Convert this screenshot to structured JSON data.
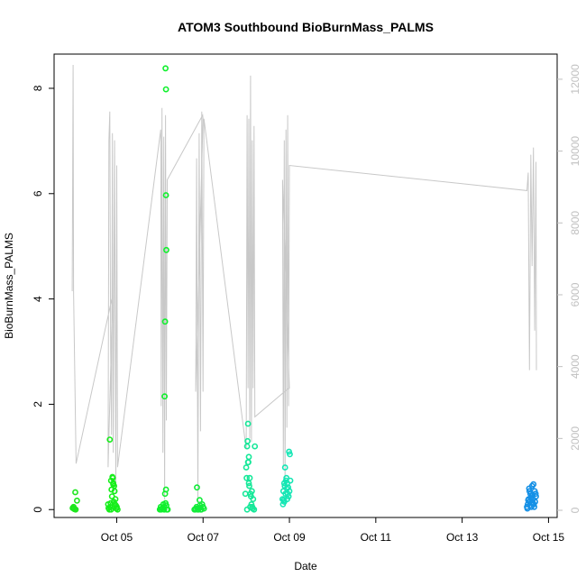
{
  "chart_data": {
    "type": "scatter",
    "title": "ATOM3 Southbound BioBurnMass_PALMS",
    "xlabel": "Date",
    "ylabel": "BioBurnMass_PALMS",
    "xlim": [
      3.55,
      15.2
    ],
    "ylim": [
      -0.15,
      8.65
    ],
    "y_ticks": [
      0,
      2,
      4,
      6,
      8
    ],
    "x_ticks": [
      {
        "value": 5,
        "label": "Oct 05"
      },
      {
        "value": 7,
        "label": "Oct 07"
      },
      {
        "value": 9,
        "label": "Oct 09"
      },
      {
        "value": 11,
        "label": "Oct 11"
      },
      {
        "value": 13,
        "label": "Oct 13"
      },
      {
        "value": 15,
        "label": "Oct 15"
      }
    ],
    "y2lim": [
      -200,
      12700
    ],
    "y2_ticks": [
      0,
      2000,
      4000,
      6000,
      8000,
      10000,
      12000
    ],
    "grid": false,
    "line_color": "#c8c8c8",
    "altitude_series": {
      "x": [
        3.97,
        3.99,
        4.0,
        4.06,
        4.88,
        4.9,
        4.8,
        4.82,
        4.84,
        4.86,
        4.88,
        4.9,
        4.92,
        4.95,
        4.98,
        5.0,
        5.02,
        6.02,
        6.03,
        6.05,
        6.07,
        6.09,
        6.11,
        6.13,
        6.15,
        6.17,
        6.99,
        7.0,
        6.83,
        6.85,
        6.88,
        6.91,
        6.94,
        6.97,
        7.0,
        7.02,
        8.0,
        8.02,
        8.04,
        8.06,
        8.08,
        8.1,
        8.12,
        8.14,
        8.16,
        8.18,
        8.2,
        8.98,
        9.0,
        8.84,
        8.86,
        8.88,
        8.9,
        8.92,
        8.94,
        8.96,
        8.98,
        9.0,
        14.5,
        14.53,
        14.56,
        14.59,
        14.62,
        14.65,
        14.68,
        14.71,
        14.72
      ],
      "y": [
        6100,
        12400,
        6100,
        1300,
        5850,
        5800,
        1200,
        10300,
        11100,
        4500,
        2100,
        10500,
        1600,
        10300,
        500,
        9600,
        1200,
        10600,
        2900,
        11200,
        1600,
        10400,
        300,
        11000,
        2500,
        9200,
        11000,
        10900,
        3300,
        9800,
        200,
        10500,
        2200,
        11100,
        3300,
        10900,
        1700,
        11000,
        3400,
        10900,
        2000,
        12100,
        1900,
        10300,
        3400,
        10700,
        2600,
        3400,
        3400,
        9200,
        1200,
        10300,
        500,
        10600,
        2300,
        11000,
        2900,
        9600,
        8900,
        9400,
        3900,
        9900,
        6800,
        10100,
        5000,
        9700,
        3900
      ]
    },
    "series": [
      {
        "color": "#1de61d",
        "x": [
          3.98,
          4.0,
          4.02,
          4.04,
          4.08,
          4.01,
          4.05
        ],
        "y": [
          0.03,
          0.05,
          0.01,
          0.33,
          0.17,
          0.02,
          0.0
        ]
      },
      {
        "color": "#16ee1a",
        "x": [
          4.8,
          4.83,
          4.85,
          4.87,
          4.9,
          4.92,
          4.95,
          4.97,
          5.0,
          5.02,
          4.86,
          4.88,
          4.91,
          4.94,
          4.96,
          4.99,
          4.84,
          4.89,
          4.93,
          4.98,
          4.81,
          4.87,
          4.92
        ],
        "y": [
          0.1,
          0.0,
          0.05,
          0.55,
          0.62,
          0.5,
          0.35,
          0.2,
          0.05,
          0.0,
          0.12,
          0.38,
          0.6,
          0.45,
          0.1,
          0.02,
          1.33,
          0.25,
          0.15,
          0.08,
          0.03,
          0.0,
          0.48
        ]
      },
      {
        "color": "#0ff02c",
        "x": [
          6.0,
          6.02,
          6.05,
          6.08,
          6.1,
          6.12,
          6.14,
          6.16,
          6.13,
          6.14,
          6.14,
          6.15,
          6.12,
          6.11,
          6.1,
          6.13,
          6.15,
          6.18,
          6.06,
          6.03
        ],
        "y": [
          0.0,
          0.05,
          0.02,
          0.1,
          0.05,
          0.3,
          0.38,
          0.0,
          8.38,
          7.98,
          5.97,
          4.93,
          3.57,
          2.15,
          0.0,
          0.12,
          0.08,
          0.0,
          0.03,
          0.0
        ]
      },
      {
        "color": "#12ec3a",
        "x": [
          6.8,
          6.83,
          6.85,
          6.88,
          6.9,
          6.93,
          6.96,
          7.0,
          7.02,
          6.86,
          6.92,
          6.98,
          6.82,
          6.95,
          6.89
        ],
        "y": [
          0.0,
          0.02,
          0.05,
          0.0,
          0.03,
          0.08,
          0.0,
          0.05,
          0.02,
          0.42,
          0.18,
          0.1,
          0.0,
          0.0,
          0.0
        ]
      },
      {
        "color": "#16e899",
        "x": [
          7.98,
          8.0,
          8.02,
          8.04,
          8.05,
          8.06,
          8.08,
          8.1,
          8.12,
          8.14,
          8.16,
          8.18,
          8.2,
          8.03,
          8.01,
          8.07,
          8.09,
          8.11,
          8.13,
          8.15,
          8.02,
          8.04,
          8.06
        ],
        "y": [
          0.3,
          0.8,
          1.2,
          1.63,
          0.9,
          0.5,
          0.6,
          0.3,
          0.1,
          0.05,
          0.2,
          0.0,
          1.2,
          1.3,
          0.6,
          0.45,
          0.05,
          0.25,
          0.35,
          0.02,
          0.0,
          0.9,
          1.0
        ]
      },
      {
        "color": "#14e6b4",
        "x": [
          8.84,
          8.86,
          8.88,
          8.9,
          8.92,
          8.94,
          8.96,
          8.98,
          9.0,
          9.02,
          8.85,
          8.87,
          8.89,
          8.91,
          8.93,
          8.95,
          8.97,
          8.99,
          9.01,
          8.88,
          8.95
        ],
        "y": [
          0.2,
          0.35,
          0.5,
          0.8,
          0.55,
          0.4,
          0.3,
          0.25,
          0.35,
          0.55,
          0.1,
          0.18,
          0.45,
          0.3,
          0.6,
          0.2,
          0.42,
          1.1,
          1.05,
          0.15,
          0.5
        ]
      },
      {
        "color": "#1590e6",
        "x": [
          14.5,
          14.52,
          14.54,
          14.56,
          14.58,
          14.6,
          14.62,
          14.64,
          14.66,
          14.68,
          14.7,
          14.51,
          14.53,
          14.55,
          14.57,
          14.59,
          14.61,
          14.63,
          14.65,
          14.67,
          14.69,
          14.71,
          14.56,
          14.6,
          14.64
        ],
        "y": [
          0.05,
          0.1,
          0.2,
          0.15,
          0.3,
          0.25,
          0.45,
          0.2,
          0.1,
          0.35,
          0.3,
          0.02,
          0.18,
          0.4,
          0.08,
          0.22,
          0.12,
          0.28,
          0.48,
          0.05,
          0.15,
          0.25,
          0.35,
          0.05,
          0.12
        ]
      }
    ]
  }
}
